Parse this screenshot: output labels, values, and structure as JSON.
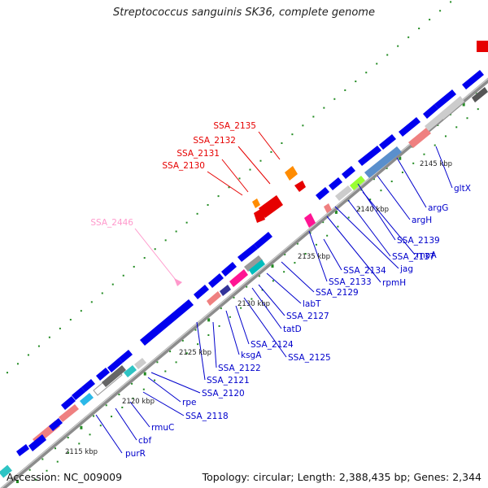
{
  "title": "Streptococcus sanguinis SK36, complete genome",
  "footer": {
    "accession": "Accession: NC_009009",
    "summary": "Topology: circular; Length: 2,388,435 bp; Genes: 2,344"
  },
  "scale_labels": [
    "2115 kbp",
    "2120 kbp",
    "2125 kbp",
    "2130 kbp",
    "2135 kbp",
    "2140 kbp",
    "2145 kbp"
  ],
  "colors": {
    "gene_default": "#0000ee",
    "highlight_label": "#e60000",
    "pseudo_label": "#ff99cc",
    "label_default": "#0000cc",
    "backbone": "#8c8c8c",
    "tick": "#228b22"
  },
  "highlight_labels": [
    "SSA_2135",
    "SSA_2132",
    "SSA_2131",
    "SSA_2130"
  ],
  "pseudo_label": "SSA_2446",
  "lower_labels": [
    "purR",
    "cbf",
    "rmuC",
    "SSA_2118",
    "rpe",
    "SSA_2120",
    "SSA_2121",
    "SSA_2122",
    "ksgA",
    "SSA_2124",
    "SSA_2125",
    "tatD",
    "SSA_2127",
    "labT",
    "SSA_2129",
    "SSA_2133",
    "SSA_2134",
    "rpmH",
    "jag",
    "SSA_2137",
    "rnpA",
    "SSA_2139",
    "argH",
    "argG",
    "gltX"
  ]
}
